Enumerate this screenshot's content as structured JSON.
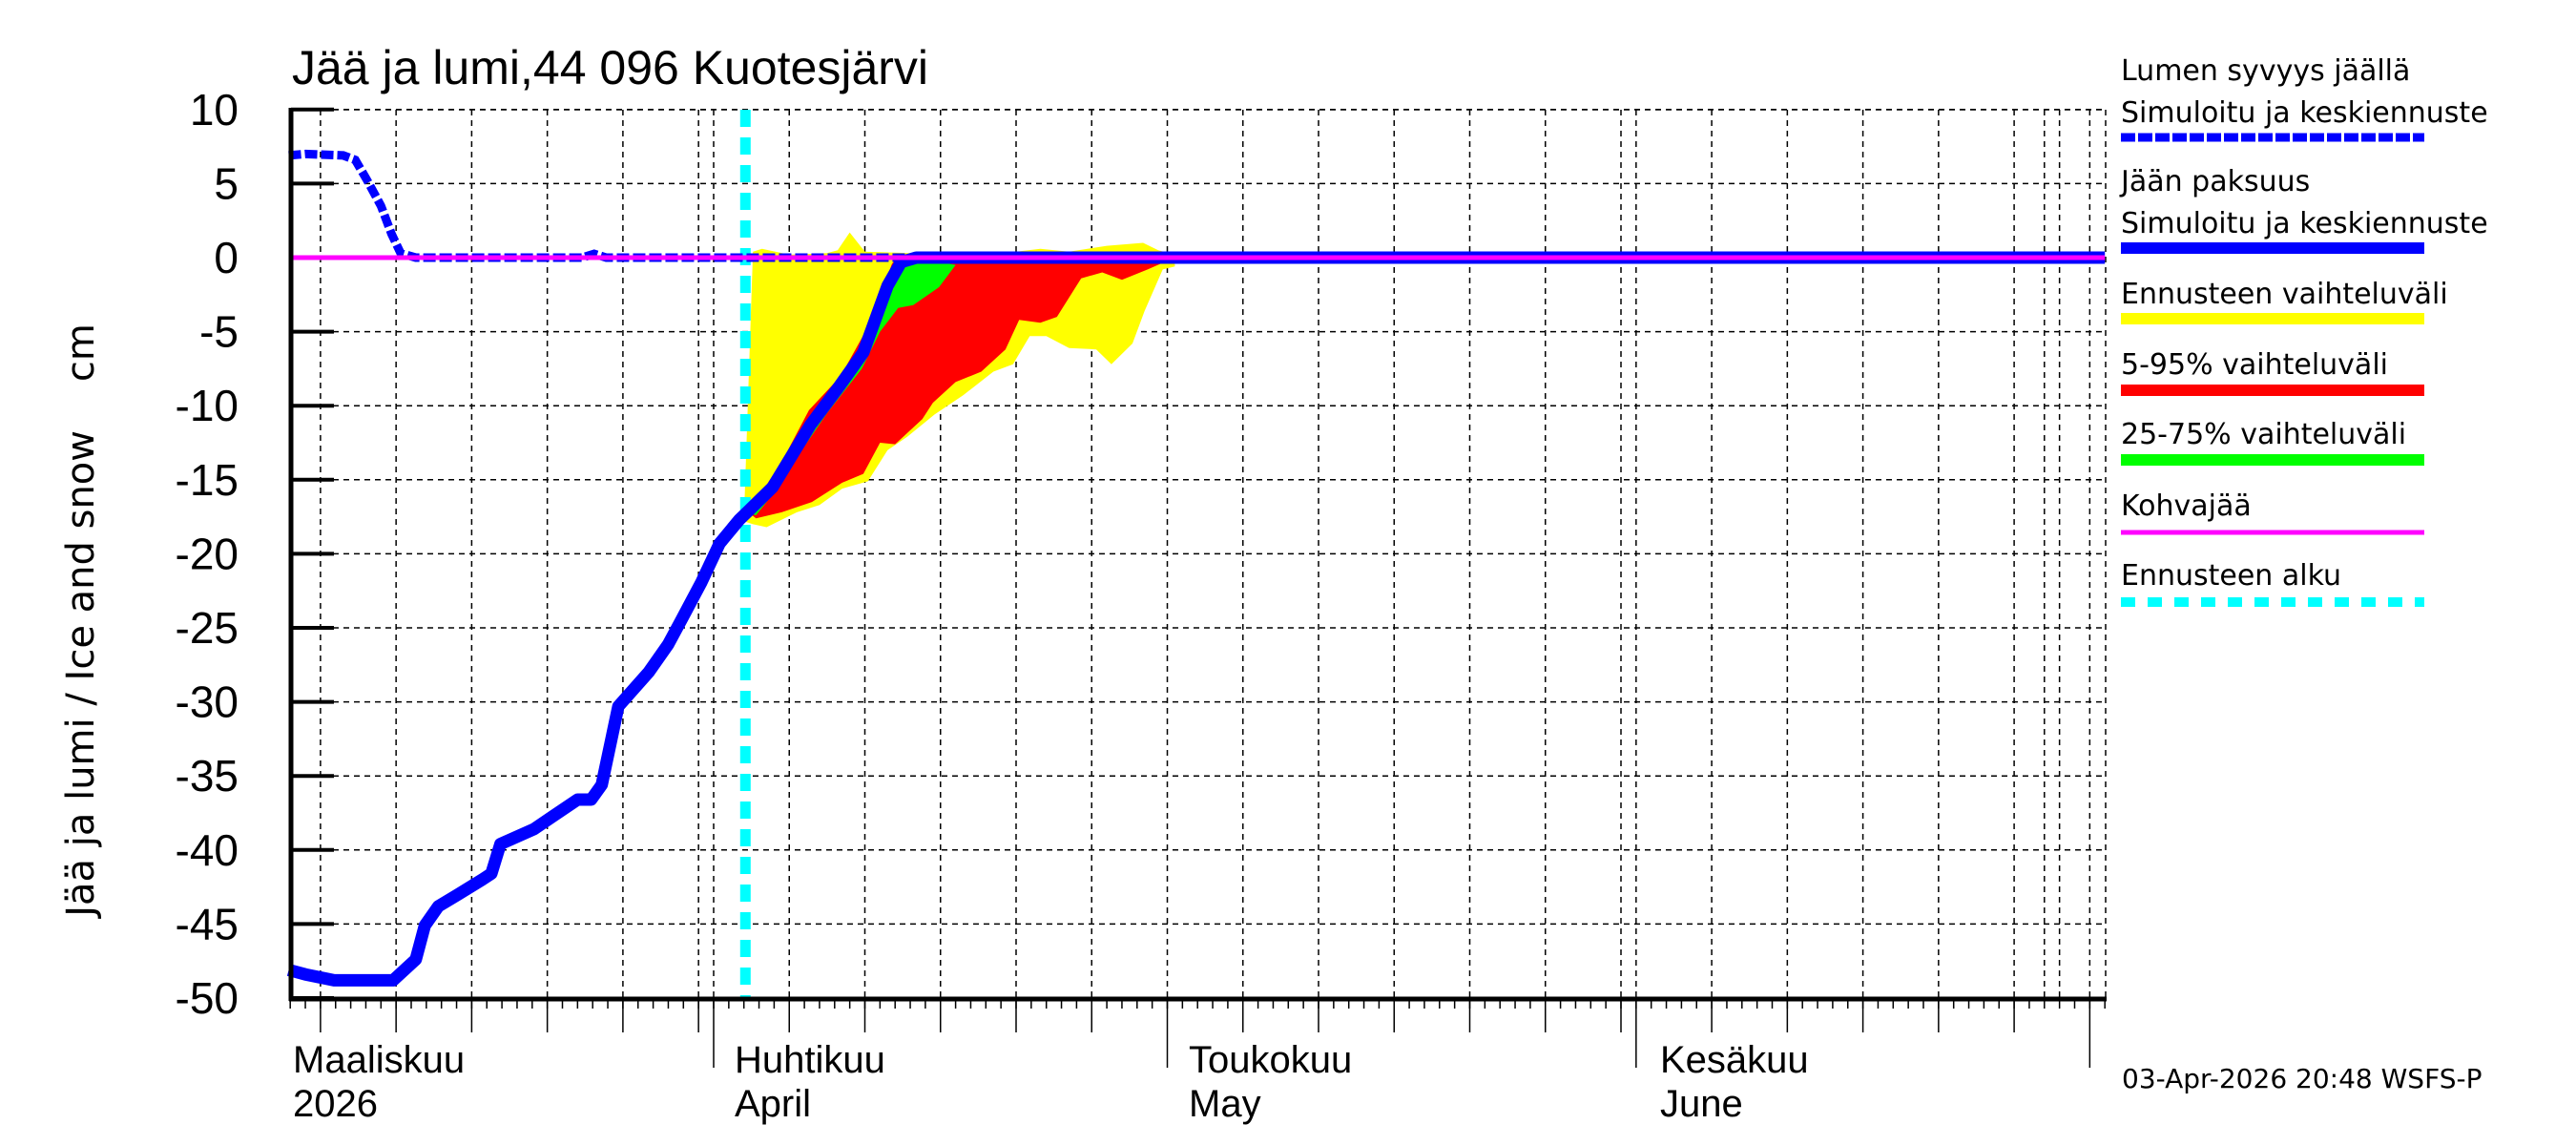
{
  "chart_data": {
    "type": "line",
    "title": "Jää ja lumi,44 096 Kuotesjärvi",
    "ylabel": "Jää ja lumi / Ice and snow    cm",
    "xlabel": "",
    "ylim": [
      -50,
      10
    ],
    "yticks": [
      10,
      5,
      0,
      -5,
      -10,
      -15,
      -20,
      -25,
      -30,
      -35,
      -40,
      -45,
      -50
    ],
    "x_unit": "days relative to 1 April 2026",
    "xlim": [
      -28.1,
      92.0
    ],
    "grid": true,
    "legend_position": "right",
    "month_labels": [
      {
        "day": -28.1,
        "fi": "Maaliskuu",
        "en": "2026"
      },
      {
        "day": 0,
        "fi": "Huhtikuu",
        "en": "April"
      },
      {
        "day": 30,
        "fi": "Toukokuu",
        "en": "May"
      },
      {
        "day": 61,
        "fi": "Kesäkuu",
        "en": "June"
      }
    ],
    "month_boundaries": [
      0,
      30,
      61,
      91
    ],
    "forecast_start_day": 2.1,
    "series": [
      {
        "name": "Lumen syvyys jäällä — Simuloitu ja keskiennuste",
        "color": "#0000ff",
        "style": "dashed",
        "points": [
          [
            -28.1,
            6.9
          ],
          [
            -27.0,
            7.0
          ],
          [
            -24.5,
            6.9
          ],
          [
            -23.7,
            6.6
          ],
          [
            -22.9,
            5.2
          ],
          [
            -22.0,
            3.5
          ],
          [
            -21.3,
            1.6
          ],
          [
            -20.7,
            0.3
          ],
          [
            -19.7,
            0.0
          ],
          [
            -8.7,
            0.0
          ],
          [
            -7.9,
            0.25
          ],
          [
            -7.1,
            0.0
          ],
          [
            12.7,
            0.0
          ]
        ]
      },
      {
        "name": "Jään paksuus — Simuloitu ja keskiennuste",
        "color": "#0000ff",
        "style": "solid",
        "points": [
          [
            -28.1,
            -48.1
          ],
          [
            -27.0,
            -48.4
          ],
          [
            -25.1,
            -48.8
          ],
          [
            -21.2,
            -48.8
          ],
          [
            -19.7,
            -47.4
          ],
          [
            -19.1,
            -45.1
          ],
          [
            -18.2,
            -43.8
          ],
          [
            -16.9,
            -43.0
          ],
          [
            -15.3,
            -42.0
          ],
          [
            -14.7,
            -41.6
          ],
          [
            -14.1,
            -39.6
          ],
          [
            -11.9,
            -38.6
          ],
          [
            -10.6,
            -37.7
          ],
          [
            -9.0,
            -36.6
          ],
          [
            -8.1,
            -36.6
          ],
          [
            -7.4,
            -35.6
          ],
          [
            -6.3,
            -30.3
          ],
          [
            -4.3,
            -28.0
          ],
          [
            -3.0,
            -26.1
          ],
          [
            -2.1,
            -24.4
          ],
          [
            -0.8,
            -21.9
          ],
          [
            0.4,
            -19.3
          ],
          [
            1.7,
            -17.7
          ],
          [
            2.3,
            -17.1
          ],
          [
            3.9,
            -15.5
          ],
          [
            6.4,
            -11.3
          ],
          [
            8.3,
            -8.7
          ],
          [
            9.9,
            -6.4
          ],
          [
            11.5,
            -1.9
          ],
          [
            12.4,
            -0.3
          ],
          [
            13.4,
            0.0
          ],
          [
            92.0,
            0.0
          ]
        ]
      },
      {
        "name": "Kohvajää",
        "color": "#ff00ff",
        "style": "solid",
        "points": [
          [
            -28.1,
            0.0
          ],
          [
            92.0,
            0.0
          ]
        ]
      }
    ],
    "bands": [
      {
        "name": "Ennusteen vaihteluväli",
        "color": "#ffff00",
        "polygon": [
          [
            2.0,
            -17.8
          ],
          [
            2.6,
            0.4
          ],
          [
            3.2,
            0.6
          ],
          [
            5.0,
            0.2
          ],
          [
            7.5,
            0.3
          ],
          [
            8.2,
            0.5
          ],
          [
            9.0,
            1.7
          ],
          [
            10.0,
            0.4
          ],
          [
            13.0,
            0.3
          ],
          [
            20.0,
            0.4
          ],
          [
            21.6,
            0.6
          ],
          [
            23.5,
            0.4
          ],
          [
            26.0,
            0.8
          ],
          [
            28.4,
            1.0
          ],
          [
            29.4,
            0.5
          ],
          [
            30.5,
            0.2
          ],
          [
            30.5,
            -0.6
          ],
          [
            29.7,
            -0.8
          ],
          [
            28.5,
            -3.6
          ],
          [
            27.7,
            -5.8
          ],
          [
            26.3,
            -7.2
          ],
          [
            25.3,
            -6.2
          ],
          [
            23.5,
            -6.1
          ],
          [
            22.0,
            -5.3
          ],
          [
            20.9,
            -5.3
          ],
          [
            19.8,
            -7.2
          ],
          [
            18.5,
            -7.7
          ],
          [
            16.5,
            -9.3
          ],
          [
            14.6,
            -10.6
          ],
          [
            12.8,
            -12.1
          ],
          [
            11.5,
            -13.0
          ],
          [
            10.2,
            -15.1
          ],
          [
            8.5,
            -15.6
          ],
          [
            7.0,
            -16.7
          ],
          [
            5.5,
            -17.2
          ],
          [
            3.5,
            -18.2
          ],
          [
            2.6,
            -18.0
          ]
        ]
      },
      {
        "name": "5-95% vaihteluväli",
        "color": "#ff0000",
        "polygon": [
          [
            2.3,
            -17.2
          ],
          [
            4.5,
            -13.8
          ],
          [
            6.3,
            -10.3
          ],
          [
            8.4,
            -8.0
          ],
          [
            10.3,
            -4.5
          ],
          [
            11.8,
            -0.4
          ],
          [
            12.2,
            0.0
          ],
          [
            29.0,
            0.0
          ],
          [
            29.8,
            -0.3
          ],
          [
            28.7,
            -0.8
          ],
          [
            27.0,
            -1.5
          ],
          [
            25.7,
            -1.0
          ],
          [
            24.3,
            -1.4
          ],
          [
            22.7,
            -4.0
          ],
          [
            21.6,
            -4.4
          ],
          [
            20.2,
            -4.2
          ],
          [
            19.3,
            -6.2
          ],
          [
            17.7,
            -7.7
          ],
          [
            16.0,
            -8.4
          ],
          [
            14.5,
            -9.8
          ],
          [
            13.8,
            -10.9
          ],
          [
            12.0,
            -12.6
          ],
          [
            11.0,
            -12.5
          ],
          [
            9.9,
            -14.6
          ],
          [
            8.5,
            -15.2
          ],
          [
            6.5,
            -16.5
          ],
          [
            4.5,
            -17.2
          ],
          [
            2.8,
            -17.6
          ]
        ]
      },
      {
        "name": "25-75% vaihteluväli",
        "color": "#00ff00",
        "polygon": [
          [
            2.5,
            -17.3
          ],
          [
            5.5,
            -12.6
          ],
          [
            8.0,
            -9.3
          ],
          [
            10.5,
            -5.0
          ],
          [
            12.3,
            -0.3
          ],
          [
            14.5,
            -0.2
          ],
          [
            16.0,
            -0.5
          ],
          [
            14.9,
            -2.0
          ],
          [
            13.2,
            -3.2
          ],
          [
            12.2,
            -3.4
          ],
          [
            11.0,
            -5.0
          ],
          [
            9.8,
            -7.5
          ],
          [
            7.5,
            -10.5
          ],
          [
            5.5,
            -13.5
          ],
          [
            3.5,
            -16.5
          ],
          [
            2.8,
            -17.4
          ]
        ]
      }
    ],
    "annotations": [
      "Ennusteen alku (forecast start) vertical dashed cyan line at ~2 April 2026"
    ]
  },
  "title": "Jää ja lumi,44 096 Kuotesjärvi",
  "y_axis": {
    "label": "Jää ja lumi / Ice and snow    cm",
    "ticks": [
      "10",
      "5",
      "0",
      "-5",
      "-10",
      "-15",
      "-20",
      "-25",
      "-30",
      "-35",
      "-40",
      "-45",
      "-50"
    ]
  },
  "x_axis": {
    "months": [
      {
        "line1": "Maaliskuu",
        "line2": "2026"
      },
      {
        "line1": "Huhtikuu",
        "line2": "April"
      },
      {
        "line1": "Toukokuu",
        "line2": "May"
      },
      {
        "line1": "Kesäkuu",
        "line2": "June"
      }
    ]
  },
  "legend": {
    "items": [
      {
        "line1": "Lumen syvyys jäällä",
        "line2": "Simuloitu ja keskiennuste",
        "color": "#0000ff",
        "style": "dashed-thick"
      },
      {
        "line1": "Jään paksuus",
        "line2": "Simuloitu ja keskiennuste",
        "color": "#0000ff",
        "style": "solid-thick"
      },
      {
        "line1": "Ennusteen vaihteluväli",
        "color": "#ffff00",
        "style": "solid-thick"
      },
      {
        "line1": "5-95% vaihteluväli",
        "color": "#ff0000",
        "style": "solid-thick"
      },
      {
        "line1": "25-75% vaihteluväli",
        "color": "#00ff00",
        "style": "solid-thick"
      },
      {
        "line1": "Kohvajää",
        "color": "#ff00ff",
        "style": "solid-thin"
      },
      {
        "line1": "Ennusteen alku",
        "color": "#00ffff",
        "style": "dashed-thick"
      }
    ]
  },
  "footer": {
    "timestamp": "03-Apr-2026 20:48 WSFS-P"
  },
  "colors": {
    "snow": "#0000ff",
    "ice": "#0000ff",
    "range_full": "#ffff00",
    "range_5_95": "#ff0000",
    "range_25_75": "#00ff00",
    "slush_ice": "#ff00ff",
    "forecast_start": "#00ffff"
  }
}
